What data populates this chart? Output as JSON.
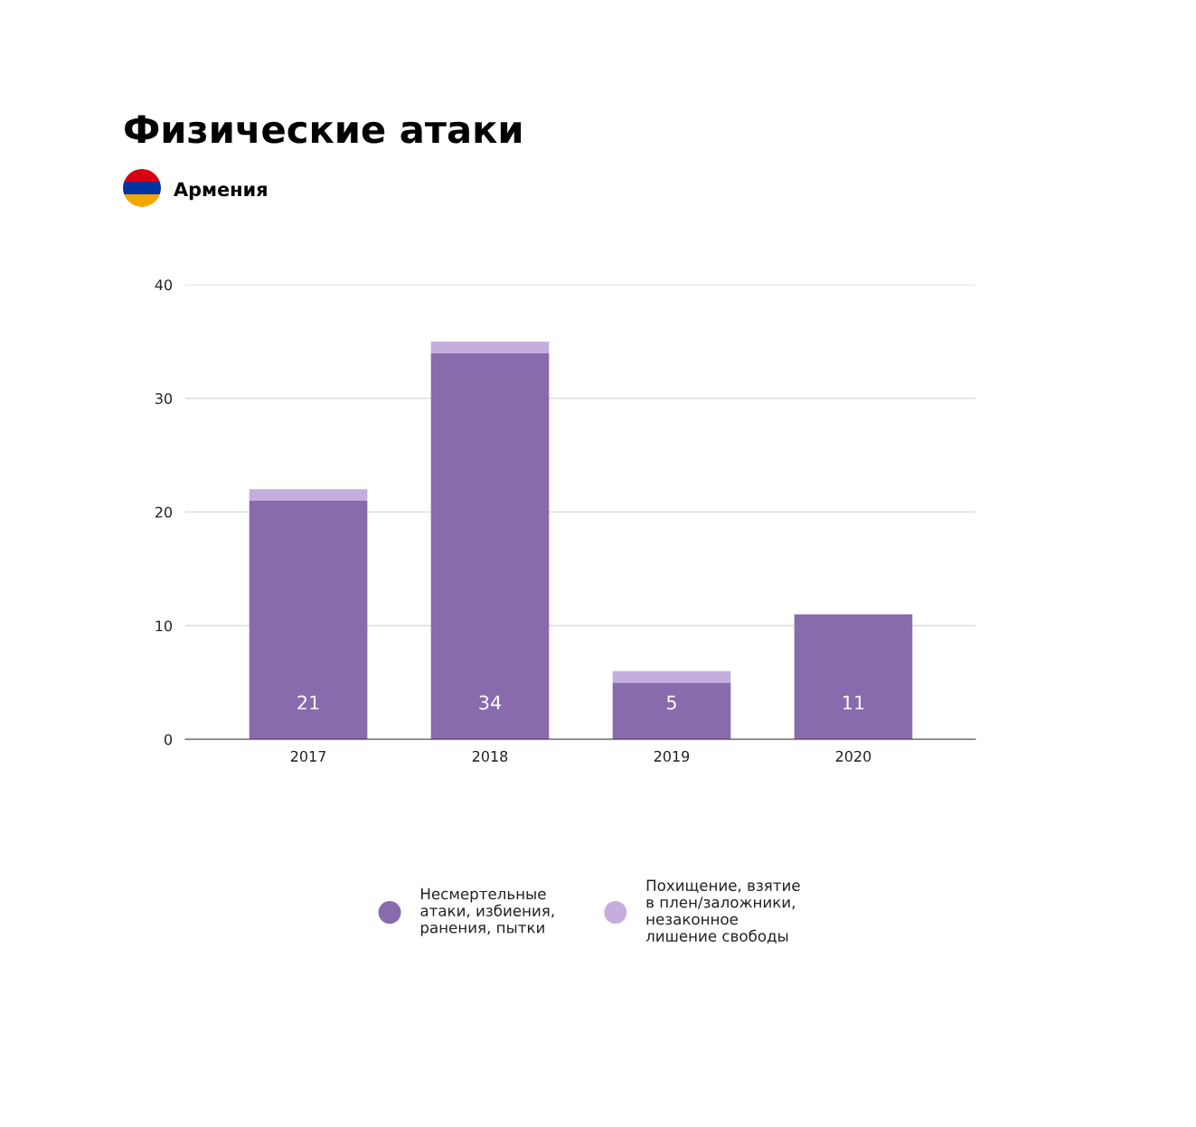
{
  "chart_data": {
    "type": "bar",
    "title": "Физические атаки",
    "subtitle": "Армения",
    "categories": [
      "2017",
      "2018",
      "2019",
      "2020"
    ],
    "stacked": true,
    "series": [
      {
        "name": "Несмертельные\nатаки, избиения,\nранения, пытки",
        "color": "#886bac",
        "values": [
          21,
          34,
          5,
          11
        ],
        "value_labels": [
          "21",
          "34",
          "5",
          "11"
        ]
      },
      {
        "name": "Похищение, взятие\nв плен/заложники,\nнезаконное\nлишение свободы",
        "color": "#c5aedf",
        "values": [
          1,
          1,
          1,
          0
        ]
      }
    ],
    "ylim": [
      0,
      40
    ],
    "yticks": [
      0,
      10,
      20,
      30,
      40
    ],
    "grid": "y",
    "legend": "bottom"
  }
}
